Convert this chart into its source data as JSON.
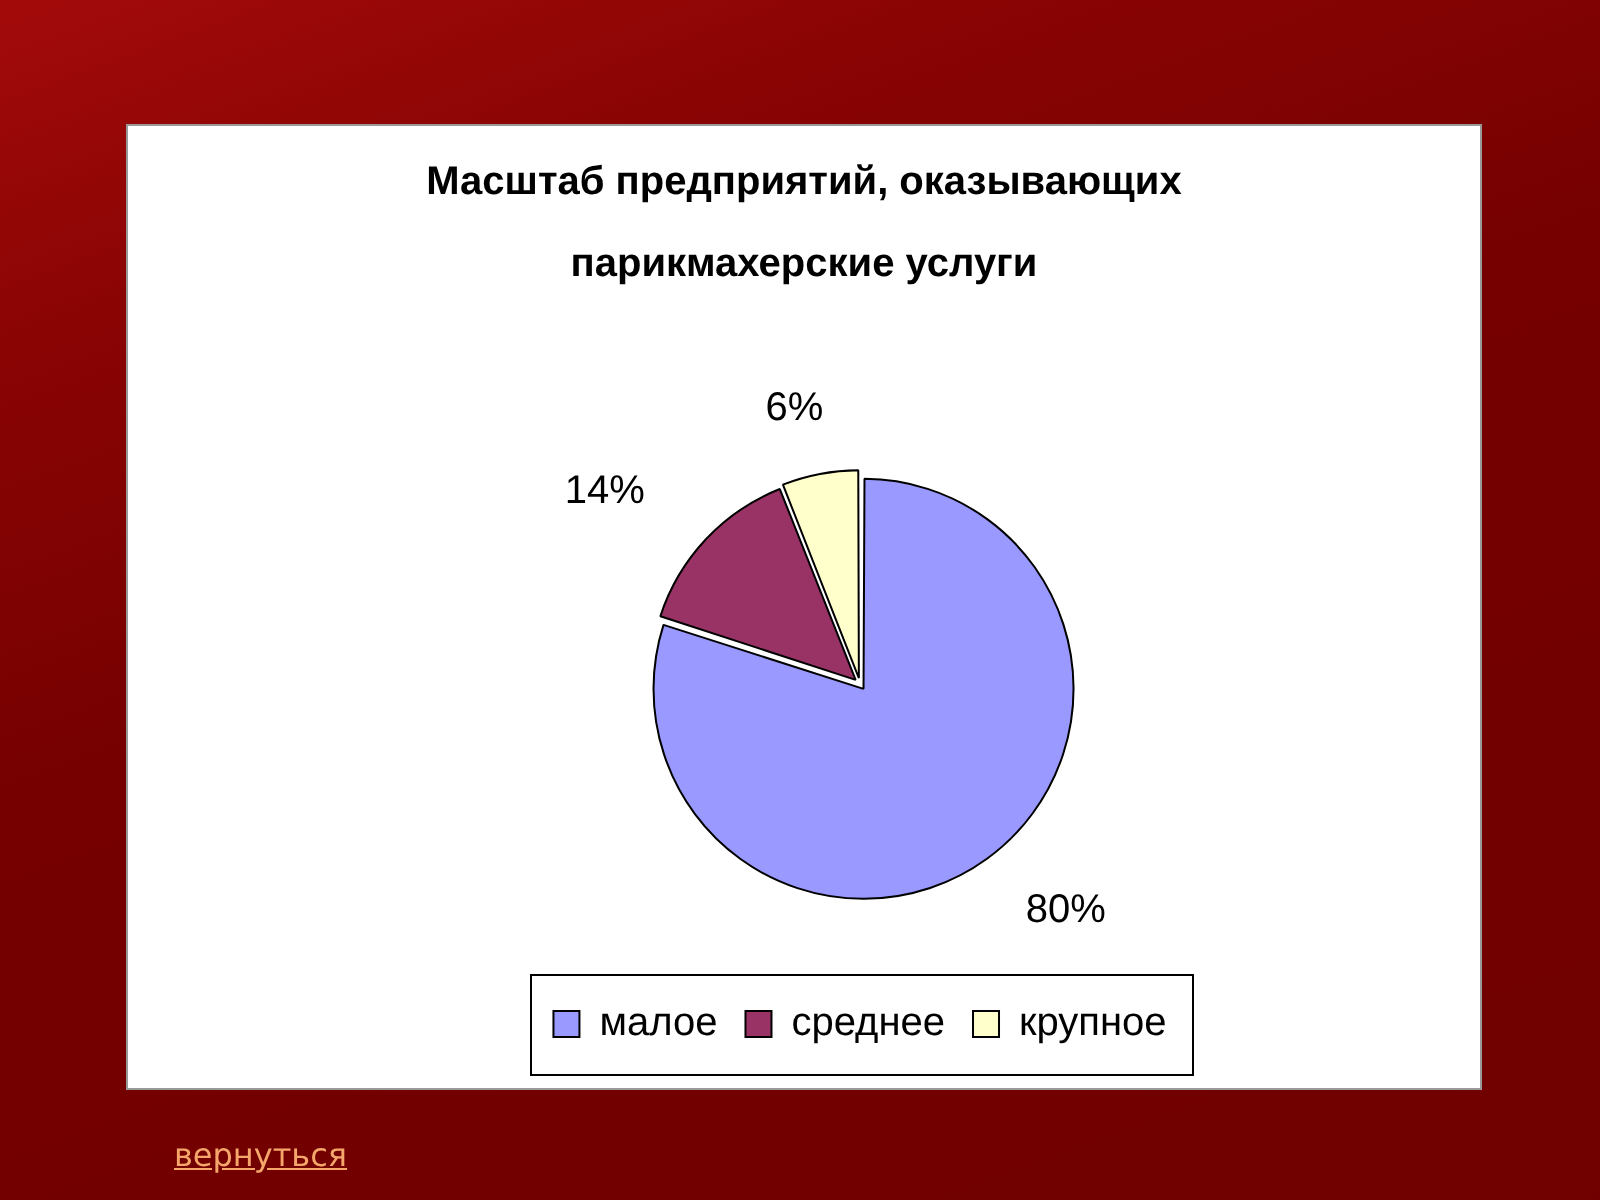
{
  "chart_data": {
    "type": "pie",
    "title": "Масштаб предприятий, оказывающих парикмахерские услуги",
    "categories": [
      "малое",
      "среднее",
      "крупное"
    ],
    "values": [
      80,
      14,
      6
    ],
    "colors": [
      "#9999ff",
      "#993366",
      "#ffffcc"
    ],
    "value_labels": [
      "80%",
      "14%",
      "6%"
    ],
    "legend": "bottom",
    "annotations": [
      "вернуться"
    ]
  }
}
